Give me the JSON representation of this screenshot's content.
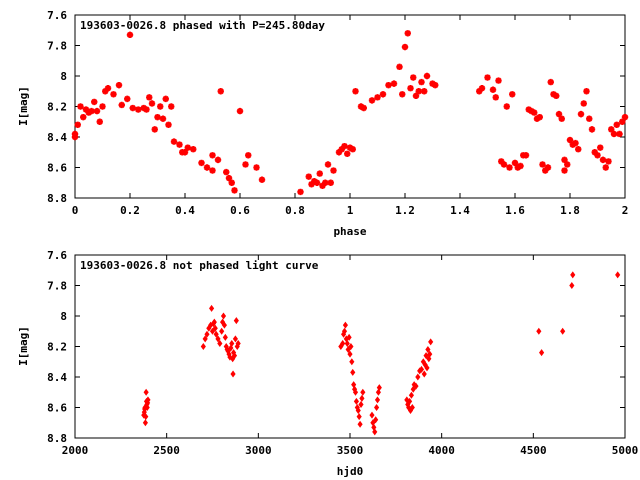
{
  "chart_data": [
    {
      "type": "scatter",
      "title": "193603-0026.8 phased with P=245.80day",
      "xlabel": "phase",
      "ylabel": "I[mag]",
      "xlim": [
        0,
        2
      ],
      "ylim": [
        7.6,
        8.8
      ],
      "y_inverted": true,
      "xticks": [
        "0",
        "0.2",
        "0.4",
        "0.6",
        "0.8",
        "1",
        "1.2",
        "1.4",
        "1.6",
        "1.8",
        "2"
      ],
      "yticks": [
        "7.6",
        "7.8",
        "8",
        "8.2",
        "8.4",
        "8.6",
        "8.8"
      ],
      "grid": false,
      "color": "#ff0000",
      "marker": "star",
      "points": [
        [
          0.0,
          8.4
        ],
        [
          0.0,
          8.38
        ],
        [
          0.01,
          8.32
        ],
        [
          0.02,
          8.2
        ],
        [
          0.03,
          8.27
        ],
        [
          0.04,
          8.22
        ],
        [
          0.05,
          8.24
        ],
        [
          0.06,
          8.23
        ],
        [
          0.07,
          8.17
        ],
        [
          0.08,
          8.23
        ],
        [
          0.09,
          8.3
        ],
        [
          0.1,
          8.2
        ],
        [
          0.11,
          8.1
        ],
        [
          0.12,
          8.08
        ],
        [
          0.14,
          8.12
        ],
        [
          0.16,
          8.06
        ],
        [
          0.17,
          8.19
        ],
        [
          0.19,
          8.15
        ],
        [
          0.2,
          7.73
        ],
        [
          0.21,
          8.21
        ],
        [
          0.23,
          8.22
        ],
        [
          0.25,
          8.21
        ],
        [
          0.26,
          8.22
        ],
        [
          0.27,
          8.14
        ],
        [
          0.28,
          8.18
        ],
        [
          0.29,
          8.35
        ],
        [
          0.3,
          8.27
        ],
        [
          0.31,
          8.2
        ],
        [
          0.32,
          8.28
        ],
        [
          0.33,
          8.15
        ],
        [
          0.34,
          8.32
        ],
        [
          0.35,
          8.2
        ],
        [
          0.36,
          8.43
        ],
        [
          0.38,
          8.45
        ],
        [
          0.39,
          8.5
        ],
        [
          0.4,
          8.5
        ],
        [
          0.41,
          8.47
        ],
        [
          0.43,
          8.48
        ],
        [
          0.46,
          8.57
        ],
        [
          0.48,
          8.6
        ],
        [
          0.5,
          8.52
        ],
        [
          0.5,
          8.62
        ],
        [
          0.52,
          8.55
        ],
        [
          0.53,
          8.1
        ],
        [
          0.55,
          8.63
        ],
        [
          0.56,
          8.67
        ],
        [
          0.57,
          8.7
        ],
        [
          0.58,
          8.75
        ],
        [
          0.6,
          8.23
        ],
        [
          0.62,
          8.58
        ],
        [
          0.63,
          8.52
        ],
        [
          0.66,
          8.6
        ],
        [
          0.68,
          8.68
        ],
        [
          0.82,
          8.76
        ],
        [
          0.85,
          8.66
        ],
        [
          0.86,
          8.71
        ],
        [
          0.87,
          8.69
        ],
        [
          0.88,
          8.7
        ],
        [
          0.89,
          8.64
        ],
        [
          0.9,
          8.72
        ],
        [
          0.91,
          8.7
        ],
        [
          0.92,
          8.58
        ],
        [
          0.93,
          8.7
        ],
        [
          0.94,
          8.62
        ],
        [
          0.96,
          8.5
        ],
        [
          0.97,
          8.48
        ],
        [
          0.98,
          8.46
        ],
        [
          0.99,
          8.51
        ],
        [
          1.0,
          8.47
        ],
        [
          1.01,
          8.48
        ],
        [
          1.02,
          8.1
        ],
        [
          1.04,
          8.2
        ],
        [
          1.05,
          8.21
        ],
        [
          1.08,
          8.16
        ],
        [
          1.1,
          8.14
        ],
        [
          1.12,
          8.12
        ],
        [
          1.14,
          8.06
        ],
        [
          1.16,
          8.05
        ],
        [
          1.18,
          7.94
        ],
        [
          1.19,
          8.12
        ],
        [
          1.2,
          7.81
        ],
        [
          1.21,
          7.72
        ],
        [
          1.22,
          8.08
        ],
        [
          1.23,
          8.01
        ],
        [
          1.24,
          8.13
        ],
        [
          1.25,
          8.1
        ],
        [
          1.26,
          8.04
        ],
        [
          1.27,
          8.1
        ],
        [
          1.28,
          8.0
        ],
        [
          1.3,
          8.05
        ],
        [
          1.31,
          8.06
        ],
        [
          1.47,
          8.1
        ],
        [
          1.48,
          8.08
        ],
        [
          1.5,
          8.01
        ],
        [
          1.52,
          8.09
        ],
        [
          1.53,
          8.14
        ],
        [
          1.54,
          8.03
        ],
        [
          1.55,
          8.56
        ],
        [
          1.56,
          8.58
        ],
        [
          1.57,
          8.2
        ],
        [
          1.58,
          8.6
        ],
        [
          1.59,
          8.12
        ],
        [
          1.6,
          8.57
        ],
        [
          1.61,
          8.6
        ],
        [
          1.62,
          8.59
        ],
        [
          1.63,
          8.52
        ],
        [
          1.64,
          8.52
        ],
        [
          1.65,
          8.22
        ],
        [
          1.66,
          8.23
        ],
        [
          1.67,
          8.24
        ],
        [
          1.68,
          8.28
        ],
        [
          1.69,
          8.27
        ],
        [
          1.7,
          8.58
        ],
        [
          1.71,
          8.62
        ],
        [
          1.72,
          8.6
        ],
        [
          1.73,
          8.04
        ],
        [
          1.74,
          8.12
        ],
        [
          1.75,
          8.13
        ],
        [
          1.76,
          8.25
        ],
        [
          1.77,
          8.28
        ],
        [
          1.78,
          8.62
        ],
        [
          1.78,
          8.55
        ],
        [
          1.79,
          8.58
        ],
        [
          1.8,
          8.42
        ],
        [
          1.81,
          8.45
        ],
        [
          1.82,
          8.44
        ],
        [
          1.83,
          8.48
        ],
        [
          1.84,
          8.25
        ],
        [
          1.85,
          8.18
        ],
        [
          1.86,
          8.1
        ],
        [
          1.87,
          8.28
        ],
        [
          1.88,
          8.35
        ],
        [
          1.89,
          8.5
        ],
        [
          1.9,
          8.52
        ],
        [
          1.91,
          8.47
        ],
        [
          1.92,
          8.55
        ],
        [
          1.93,
          8.6
        ],
        [
          1.94,
          8.56
        ],
        [
          1.95,
          8.35
        ],
        [
          1.96,
          8.38
        ],
        [
          1.97,
          8.32
        ],
        [
          1.98,
          8.38
        ],
        [
          1.99,
          8.3
        ],
        [
          2.0,
          8.27
        ]
      ]
    },
    {
      "type": "scatter",
      "title": "193603-0026.8 not phased light curve",
      "xlabel": "hjd0",
      "ylabel": "I[mag]",
      "xlim": [
        2000,
        5000
      ],
      "ylim": [
        7.6,
        8.8
      ],
      "y_inverted": true,
      "xticks": [
        "2000",
        "2500",
        "3000",
        "3500",
        "4000",
        "4500",
        "5000"
      ],
      "yticks": [
        "7.6",
        "7.8",
        "8",
        "8.2",
        "8.4",
        "8.6",
        "8.8"
      ],
      "grid": false,
      "color": "#ff0000",
      "marker": "diamond",
      "points": [
        [
          2375,
          8.65
        ],
        [
          2378,
          8.63
        ],
        [
          2380,
          8.61
        ],
        [
          2382,
          8.6
        ],
        [
          2384,
          8.7
        ],
        [
          2386,
          8.66
        ],
        [
          2388,
          8.5
        ],
        [
          2390,
          8.56
        ],
        [
          2392,
          8.58
        ],
        [
          2394,
          8.6
        ],
        [
          2396,
          8.57
        ],
        [
          2398,
          8.55
        ],
        [
          2700,
          8.2
        ],
        [
          2710,
          8.15
        ],
        [
          2720,
          8.12
        ],
        [
          2730,
          8.08
        ],
        [
          2740,
          8.06
        ],
        [
          2745,
          7.95
        ],
        [
          2750,
          8.1
        ],
        [
          2755,
          8.05
        ],
        [
          2760,
          8.04
        ],
        [
          2765,
          8.08
        ],
        [
          2770,
          8.12
        ],
        [
          2780,
          8.15
        ],
        [
          2790,
          8.18
        ],
        [
          2800,
          8.1
        ],
        [
          2805,
          8.04
        ],
        [
          2810,
          8.0
        ],
        [
          2815,
          8.06
        ],
        [
          2820,
          8.14
        ],
        [
          2825,
          8.2
        ],
        [
          2830,
          8.22
        ],
        [
          2835,
          8.23
        ],
        [
          2840,
          8.25
        ],
        [
          2845,
          8.27
        ],
        [
          2850,
          8.21
        ],
        [
          2855,
          8.18
        ],
        [
          2860,
          8.28
        ],
        [
          2862,
          8.38
        ],
        [
          2865,
          8.24
        ],
        [
          2870,
          8.26
        ],
        [
          2875,
          8.15
        ],
        [
          2880,
          8.03
        ],
        [
          2885,
          8.2
        ],
        [
          2890,
          8.18
        ],
        [
          3450,
          8.2
        ],
        [
          3460,
          8.18
        ],
        [
          3465,
          8.12
        ],
        [
          3470,
          8.1
        ],
        [
          3475,
          8.06
        ],
        [
          3480,
          8.15
        ],
        [
          3485,
          8.18
        ],
        [
          3490,
          8.22
        ],
        [
          3495,
          8.14
        ],
        [
          3500,
          8.25
        ],
        [
          3505,
          8.2
        ],
        [
          3510,
          8.3
        ],
        [
          3515,
          8.37
        ],
        [
          3520,
          8.45
        ],
        [
          3525,
          8.48
        ],
        [
          3530,
          8.5
        ],
        [
          3535,
          8.56
        ],
        [
          3540,
          8.6
        ],
        [
          3545,
          8.62
        ],
        [
          3550,
          8.66
        ],
        [
          3555,
          8.71
        ],
        [
          3560,
          8.58
        ],
        [
          3565,
          8.54
        ],
        [
          3570,
          8.5
        ],
        [
          3620,
          8.65
        ],
        [
          3625,
          8.7
        ],
        [
          3630,
          8.73
        ],
        [
          3635,
          8.76
        ],
        [
          3640,
          8.68
        ],
        [
          3645,
          8.6
        ],
        [
          3650,
          8.55
        ],
        [
          3655,
          8.5
        ],
        [
          3660,
          8.47
        ],
        [
          3810,
          8.55
        ],
        [
          3815,
          8.58
        ],
        [
          3820,
          8.6
        ],
        [
          3825,
          8.56
        ],
        [
          3830,
          8.62
        ],
        [
          3835,
          8.52
        ],
        [
          3840,
          8.6
        ],
        [
          3845,
          8.48
        ],
        [
          3850,
          8.45
        ],
        [
          3860,
          8.46
        ],
        [
          3870,
          8.4
        ],
        [
          3880,
          8.36
        ],
        [
          3890,
          8.35
        ],
        [
          3900,
          8.3
        ],
        [
          3905,
          8.38
        ],
        [
          3910,
          8.32
        ],
        [
          3915,
          8.26
        ],
        [
          3920,
          8.34
        ],
        [
          3925,
          8.22
        ],
        [
          3930,
          8.28
        ],
        [
          3935,
          8.25
        ],
        [
          3940,
          8.17
        ],
        [
          4530,
          8.1
        ],
        [
          4545,
          8.24
        ],
        [
          4660,
          8.1
        ],
        [
          4710,
          7.8
        ],
        [
          4715,
          7.73
        ],
        [
          4960,
          7.73
        ]
      ]
    }
  ]
}
